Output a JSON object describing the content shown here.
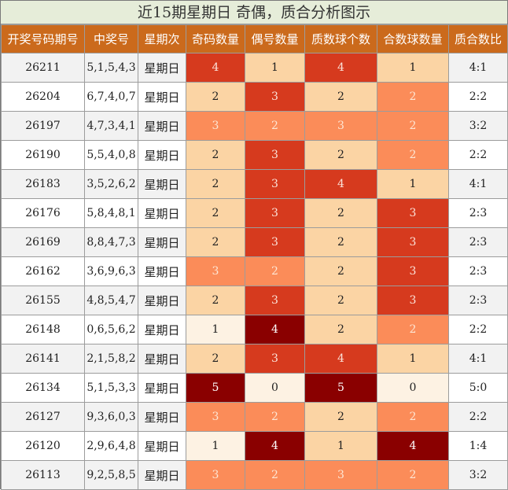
{
  "title": "近15期星期日 奇偶，质合分析图示",
  "headers": [
    "开奖号码期号",
    "中奖号",
    "星期次",
    "奇码数量",
    "偶号数量",
    "质数球个数",
    "合数球数量",
    "质合数比"
  ],
  "rows": [
    {
      "issue": "26211",
      "numbers": "5,1,5,4,3",
      "weekday": "星期日",
      "odd": "4",
      "even": "1",
      "prime": "4",
      "composite": "1",
      "ratio": "4:1"
    },
    {
      "issue": "26204",
      "numbers": "6,7,4,0,7",
      "weekday": "星期日",
      "odd": "2",
      "even": "3",
      "prime": "2",
      "composite": "2",
      "ratio": "2:2"
    },
    {
      "issue": "26197",
      "numbers": "4,7,3,4,1",
      "weekday": "星期日",
      "odd": "3",
      "even": "2",
      "prime": "3",
      "composite": "2",
      "ratio": "3:2"
    },
    {
      "issue": "26190",
      "numbers": "5,5,4,0,8",
      "weekday": "星期日",
      "odd": "2",
      "even": "3",
      "prime": "2",
      "composite": "2",
      "ratio": "2:2"
    },
    {
      "issue": "26183",
      "numbers": "3,5,2,6,2",
      "weekday": "星期日",
      "odd": "2",
      "even": "3",
      "prime": "4",
      "composite": "1",
      "ratio": "4:1"
    },
    {
      "issue": "26176",
      "numbers": "5,8,4,8,1",
      "weekday": "星期日",
      "odd": "2",
      "even": "3",
      "prime": "2",
      "composite": "3",
      "ratio": "2:3"
    },
    {
      "issue": "26169",
      "numbers": "8,8,4,7,3",
      "weekday": "星期日",
      "odd": "2",
      "even": "3",
      "prime": "2",
      "composite": "3",
      "ratio": "2:3"
    },
    {
      "issue": "26162",
      "numbers": "3,6,9,6,3",
      "weekday": "星期日",
      "odd": "3",
      "even": "2",
      "prime": "2",
      "composite": "3",
      "ratio": "2:3"
    },
    {
      "issue": "26155",
      "numbers": "4,8,5,4,7",
      "weekday": "星期日",
      "odd": "2",
      "even": "3",
      "prime": "2",
      "composite": "3",
      "ratio": "2:3"
    },
    {
      "issue": "26148",
      "numbers": "0,6,5,6,2",
      "weekday": "星期日",
      "odd": "1",
      "even": "4",
      "prime": "2",
      "composite": "2",
      "ratio": "2:2"
    },
    {
      "issue": "26141",
      "numbers": "2,1,5,8,2",
      "weekday": "星期日",
      "odd": "2",
      "even": "3",
      "prime": "4",
      "composite": "1",
      "ratio": "4:1"
    },
    {
      "issue": "26134",
      "numbers": "5,1,5,3,3",
      "weekday": "星期日",
      "odd": "5",
      "even": "0",
      "prime": "5",
      "composite": "0",
      "ratio": "5:0"
    },
    {
      "issue": "26127",
      "numbers": "9,3,6,0,3",
      "weekday": "星期日",
      "odd": "3",
      "even": "2",
      "prime": "2",
      "composite": "2",
      "ratio": "2:2"
    },
    {
      "issue": "26120",
      "numbers": "2,9,6,4,8",
      "weekday": "星期日",
      "odd": "1",
      "even": "4",
      "prime": "1",
      "composite": "4",
      "ratio": "1:4"
    },
    {
      "issue": "26113",
      "numbers": "9,2,5,8,5",
      "weekday": "星期日",
      "odd": "3",
      "even": "2",
      "prime": "3",
      "composite": "2",
      "ratio": "3:2"
    }
  ],
  "heat_colors": {
    "0": "#fdf2e3",
    "1": "#fdf2e3",
    "2": "#fbd4a4",
    "3": "#fb8c59",
    "4": "#d63a1e",
    "5": "#8a0000"
  },
  "heat_colors_composite": {
    "0": "#fdf2e3",
    "1": "#fbd4a4",
    "2": "#fb8c59",
    "3": "#d63a1e",
    "4": "#8a0000"
  }
}
